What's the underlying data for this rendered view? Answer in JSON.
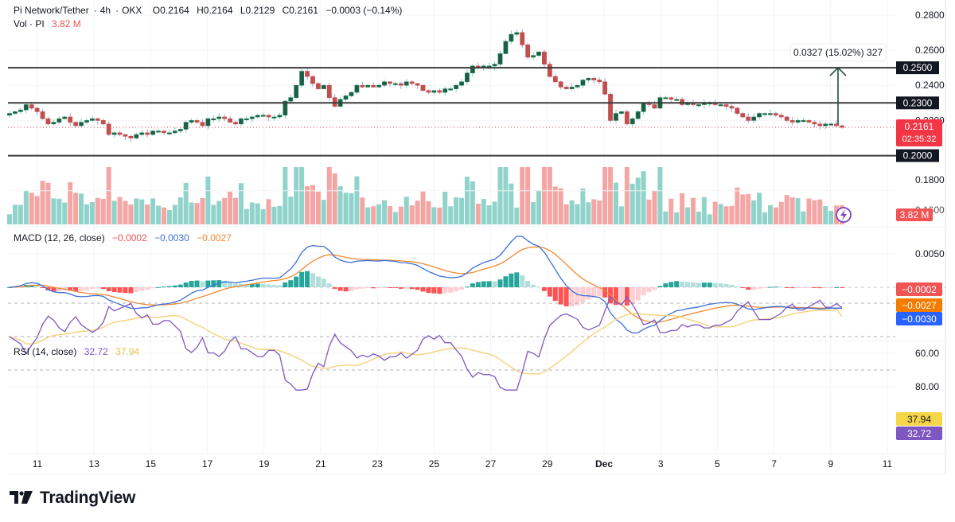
{
  "header": {
    "symbol": "Pi Network/Tether",
    "interval": "4h",
    "exchange": "OKX",
    "open": "O0.2164",
    "high": "H0.2164",
    "low": "L0.2129",
    "close": "C0.2161",
    "change": "−0.0003 (−0.14%)",
    "vol_label": "Vol · PI",
    "vol_value": "3.82 M"
  },
  "colors": {
    "up": "#26a69a",
    "down": "#ef5350",
    "vol_up": "#8fd3ca",
    "vol_down": "#f3a6a4",
    "macd": "#3d6fd8",
    "signal": "#f0892f",
    "rsi": "#7e57c2",
    "rsi_ma": "#f5d27a",
    "level": "#131722",
    "badge_dark": "#131722",
    "price_badge": "#f23645",
    "vol_badge": "#f05454",
    "hist_badge": "#f05454",
    "signal_badge": "#f57c00",
    "macd_badge": "#2962ff",
    "rsi_ma_badge": "#f7d548",
    "rsi_badge": "#7e57c2"
  },
  "price_axis": {
    "ticks": [
      "0.2800",
      "0.2600",
      "0.2400",
      "0.2200",
      "0.1800",
      "0.1600"
    ]
  },
  "levels": [
    {
      "value": 0.25,
      "label": "0.2500"
    },
    {
      "value": 0.23,
      "label": "0.2300"
    },
    {
      "value": 0.2,
      "label": "0.2000"
    }
  ],
  "last_price": {
    "label": "0.2161",
    "countdown": "02:35:32"
  },
  "measure": {
    "label": "0.0327 (15.02%) 327"
  },
  "volume_badge": "3.82 M",
  "macd": {
    "title": "MACD (12, 26, close)",
    "hist_value": "−0.0002",
    "macd_value": "−0.0030",
    "signal_value": "−0.0027",
    "axis_tick": "0.0050"
  },
  "rsi": {
    "title": "RSI (14, close)",
    "value": "32.72",
    "ma_value": "37.94",
    "ticks": [
      "80.00",
      "60.00"
    ]
  },
  "time_axis": [
    "11",
    "13",
    "15",
    "17",
    "19",
    "21",
    "23",
    "25",
    "27",
    "29",
    "Dec",
    "3",
    "5",
    "7",
    "9",
    "11"
  ],
  "footer": {
    "brand": "TradingView"
  },
  "chart_data": [
    {
      "type": "candlestick",
      "title": "Pi Network/Tether · 4h · OKX",
      "ylim": [
        0.198,
        0.284
      ],
      "close_series_approx": [
        0.224,
        0.225,
        0.226,
        0.229,
        0.227,
        0.225,
        0.221,
        0.218,
        0.219,
        0.221,
        0.222,
        0.219,
        0.217,
        0.219,
        0.22,
        0.221,
        0.22,
        0.218,
        0.212,
        0.213,
        0.212,
        0.211,
        0.21,
        0.212,
        0.213,
        0.212,
        0.214,
        0.214,
        0.213,
        0.213,
        0.214,
        0.215,
        0.219,
        0.22,
        0.219,
        0.217,
        0.221,
        0.221,
        0.222,
        0.221,
        0.219,
        0.218,
        0.221,
        0.221,
        0.222,
        0.223,
        0.223,
        0.222,
        0.222,
        0.223,
        0.231,
        0.233,
        0.24,
        0.248,
        0.245,
        0.241,
        0.238,
        0.24,
        0.233,
        0.228,
        0.232,
        0.234,
        0.236,
        0.24,
        0.239,
        0.24,
        0.239,
        0.24,
        0.242,
        0.241,
        0.241,
        0.24,
        0.242,
        0.241,
        0.24,
        0.237,
        0.236,
        0.237,
        0.236,
        0.238,
        0.238,
        0.24,
        0.242,
        0.247,
        0.251,
        0.25,
        0.251,
        0.251,
        0.252,
        0.258,
        0.265,
        0.269,
        0.27,
        0.263,
        0.256,
        0.257,
        0.259,
        0.252,
        0.245,
        0.242,
        0.239,
        0.238,
        0.239,
        0.24,
        0.243,
        0.244,
        0.243,
        0.242,
        0.235,
        0.22,
        0.224,
        0.225,
        0.218,
        0.221,
        0.225,
        0.23,
        0.229,
        0.227,
        0.233,
        0.233,
        0.232,
        0.232,
        0.229,
        0.23,
        0.229,
        0.229,
        0.23,
        0.23,
        0.229,
        0.229,
        0.228,
        0.227,
        0.224,
        0.222,
        0.22,
        0.222,
        0.224,
        0.224,
        0.224,
        0.223,
        0.222,
        0.22,
        0.219,
        0.22,
        0.22,
        0.219,
        0.218,
        0.217,
        0.218,
        0.218,
        0.217,
        0.2161
      ]
    },
    {
      "type": "bar",
      "title": "Volume",
      "last_value": "3.82 M"
    },
    {
      "type": "line",
      "title": "MACD (12, 26, close)",
      "series": [
        {
          "name": "MACD",
          "last": -0.003
        },
        {
          "name": "Signal",
          "last": -0.0027
        },
        {
          "name": "Histogram",
          "last": -0.0002
        }
      ],
      "ytick": 0.005
    },
    {
      "type": "line",
      "title": "RSI (14, close)",
      "ylim": [
        25,
        85
      ],
      "bands": [
        30,
        50,
        70
      ],
      "series": [
        {
          "name": "RSI",
          "last": 32.72
        },
        {
          "name": "RSI MA",
          "last": 37.94
        }
      ]
    }
  ]
}
